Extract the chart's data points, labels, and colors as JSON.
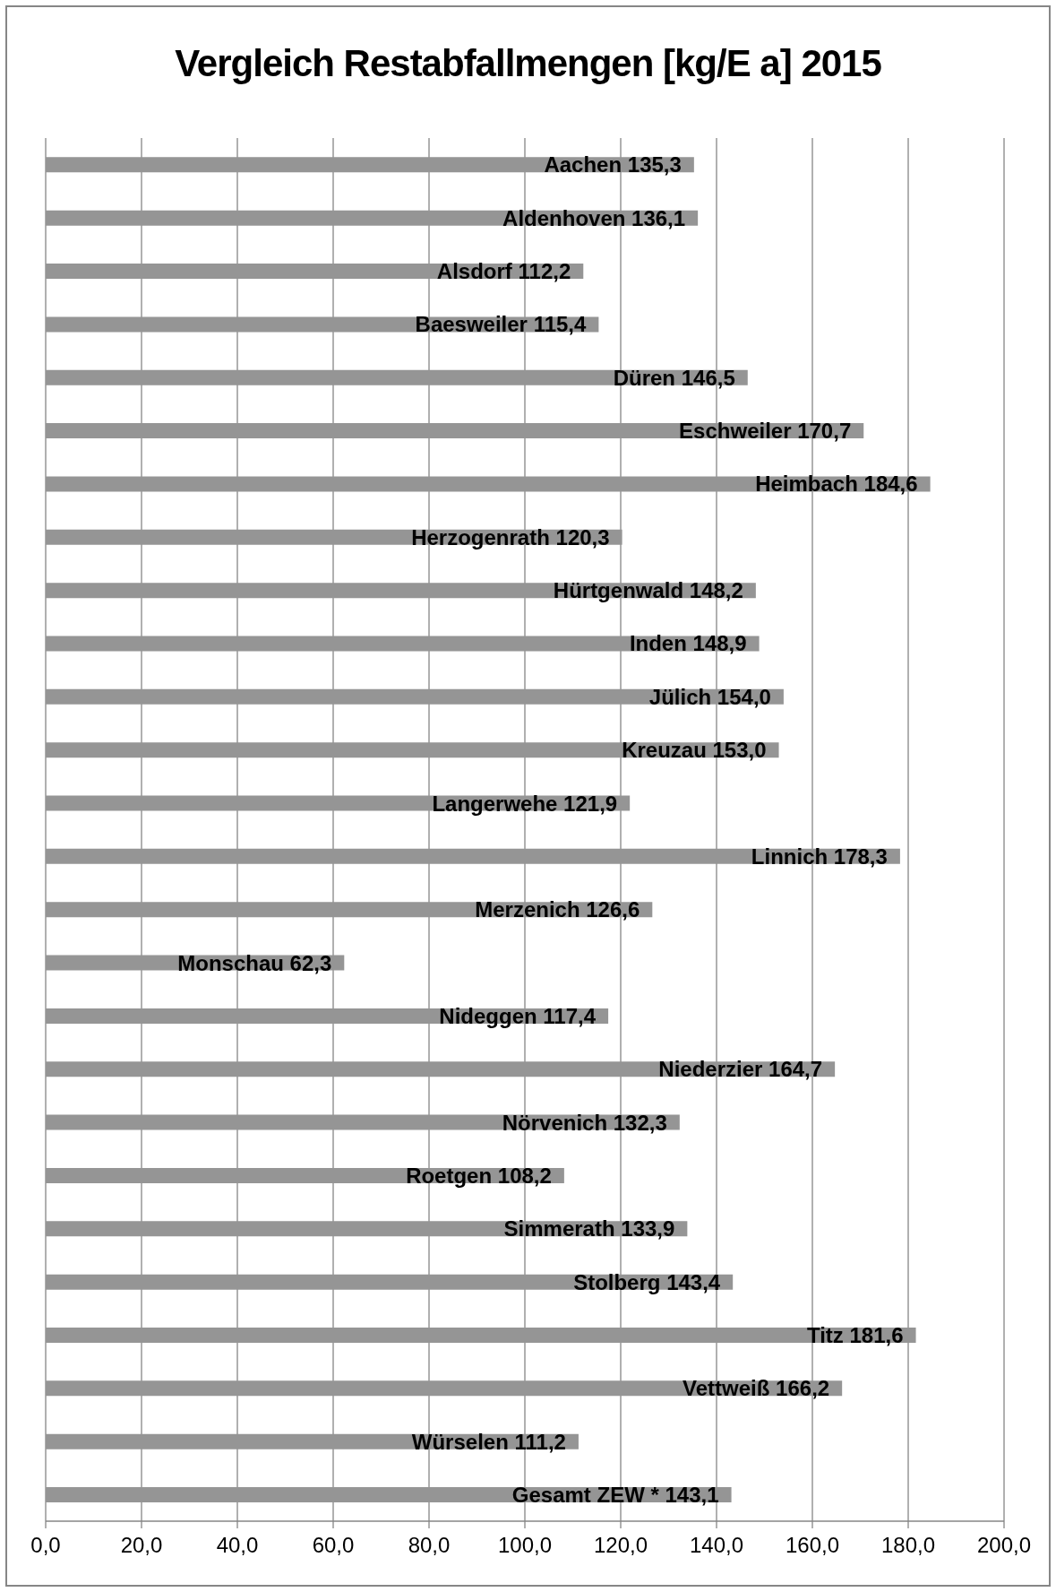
{
  "chart_data": {
    "type": "bar",
    "title": "Vergleich Restabfallmengen [kg/E a] 2015",
    "orientation": "horizontal",
    "categories": [
      "Aachen",
      "Aldenhoven",
      "Alsdorf",
      "Baesweiler",
      "Düren",
      "Eschweiler",
      "Heimbach",
      "Herzogenrath",
      "Hürtgenwald",
      "Inden",
      "Jülich",
      "Kreuzau",
      "Langerwehe",
      "Linnich",
      "Merzenich",
      "Monschau",
      "Nideggen",
      "Niederzier",
      "Nörvenich",
      "Roetgen",
      "Simmerath",
      "Stolberg",
      "Titz",
      "Vettweiß",
      "Würselen",
      "Gesamt ZEW *"
    ],
    "values": [
      135.3,
      136.1,
      112.2,
      115.4,
      146.5,
      170.7,
      184.6,
      120.3,
      148.2,
      148.9,
      154.0,
      153.0,
      121.9,
      178.3,
      126.6,
      62.3,
      117.4,
      164.7,
      132.3,
      108.2,
      133.9,
      143.4,
      181.6,
      166.2,
      111.2,
      143.1
    ],
    "value_labels": [
      "135,3",
      "136,1",
      "112,2",
      "115,4",
      "146,5",
      "170,7",
      "184,6",
      "120,3",
      "148,2",
      "148,9",
      "154,0",
      "153,0",
      "121,9",
      "178,3",
      "126,6",
      "62,3",
      "117,4",
      "164,7",
      "132,3",
      "108,2",
      "133,9",
      "143,4",
      "181,6",
      "166,2",
      "111,2",
      "143,1"
    ],
    "color": "#959595",
    "xlim": [
      0,
      200
    ],
    "xticks": [
      {
        "value": 0,
        "label": "0,0"
      },
      {
        "value": 20,
        "label": "20,0"
      },
      {
        "value": 40,
        "label": "40,0"
      },
      {
        "value": 60,
        "label": "60,0"
      },
      {
        "value": 80,
        "label": "80,0"
      },
      {
        "value": 100,
        "label": "100,0"
      },
      {
        "value": 120,
        "label": "120,0"
      },
      {
        "value": 140,
        "label": "140,0"
      },
      {
        "value": 160,
        "label": "160,0"
      },
      {
        "value": 180,
        "label": "180,0"
      },
      {
        "value": 200,
        "label": "200,0"
      }
    ],
    "grid": "x",
    "tick_labels": "x"
  }
}
